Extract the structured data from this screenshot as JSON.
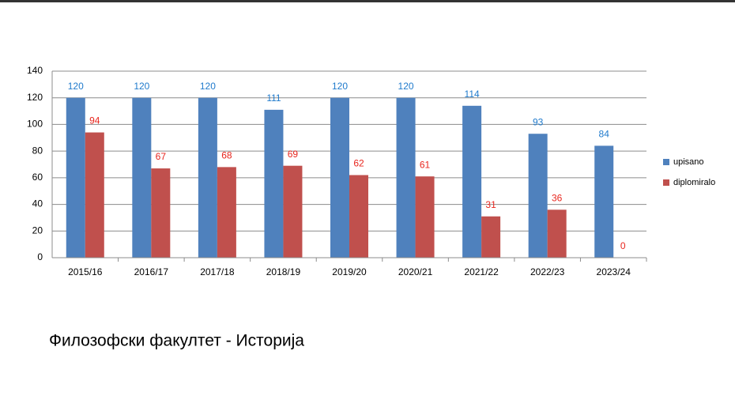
{
  "chart_data": {
    "type": "bar",
    "caption": "Филозофски факултет - Историја",
    "categories": [
      "2015/16",
      "2016/17",
      "2017/18",
      "2018/19",
      "2019/20",
      "2020/21",
      "2021/22",
      "2022/23",
      "2023/24"
    ],
    "series": [
      {
        "name": "upisano",
        "color": "#4f81bd",
        "label_color": "#1f7acc",
        "values": [
          120,
          120,
          120,
          111,
          120,
          120,
          114,
          93,
          84
        ]
      },
      {
        "name": "diplomiralo",
        "color": "#c0504d",
        "label_color": "#e8261e",
        "values": [
          94,
          67,
          68,
          69,
          62,
          61,
          31,
          36,
          0
        ]
      }
    ],
    "ylim": [
      0,
      140
    ],
    "yticks": [
      0,
      20,
      40,
      60,
      80,
      100,
      120,
      140
    ],
    "grid": true,
    "legend": "right"
  }
}
